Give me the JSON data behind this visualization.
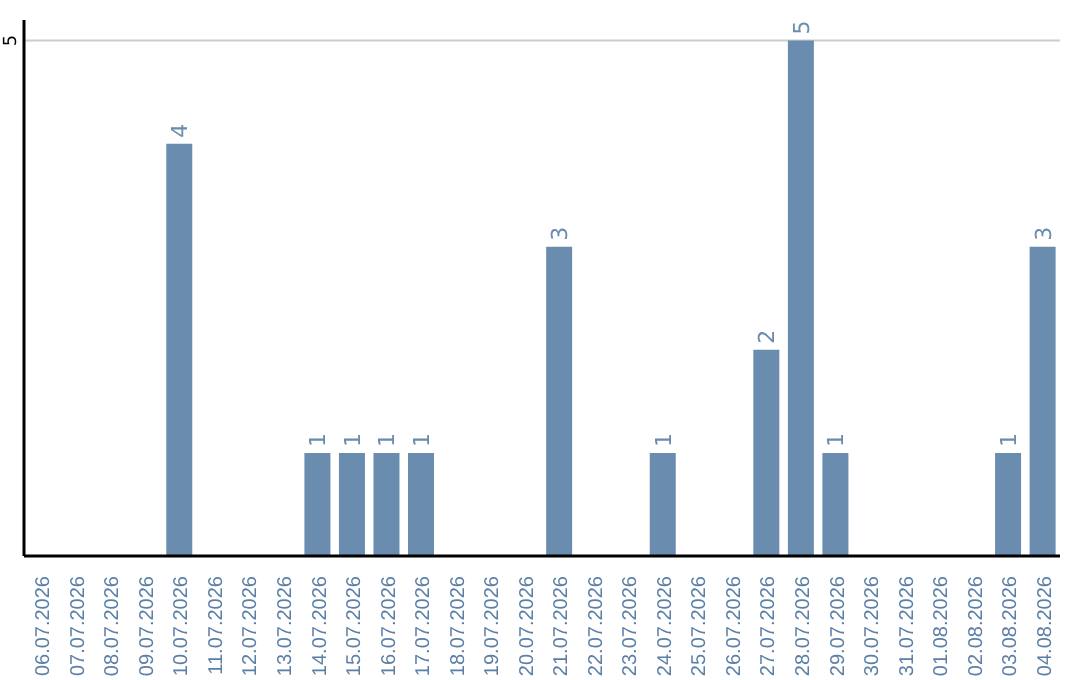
{
  "chart_data": {
    "type": "bar",
    "categories": [
      "06.07.2026",
      "07.07.2026",
      "08.07.2026",
      "09.07.2026",
      "10.07.2026",
      "11.07.2026",
      "12.07.2026",
      "13.07.2026",
      "14.07.2026",
      "15.07.2026",
      "16.07.2026",
      "17.07.2026",
      "18.07.2026",
      "19.07.2026",
      "20.07.2026",
      "21.07.2026",
      "22.07.2026",
      "23.07.2026",
      "24.07.2026",
      "25.07.2026",
      "26.07.2026",
      "27.07.2026",
      "28.07.2026",
      "29.07.2026",
      "30.07.2026",
      "31.07.2026",
      "01.08.2026",
      "02.08.2026",
      "03.08.2026",
      "04.08.2026"
    ],
    "values": [
      null,
      null,
      null,
      null,
      4,
      null,
      null,
      null,
      1,
      1,
      1,
      1,
      null,
      null,
      null,
      3,
      null,
      null,
      1,
      null,
      null,
      2,
      5,
      1,
      null,
      null,
      null,
      null,
      1,
      3
    ],
    "color": "#6a8caf",
    "ylim": [
      0,
      5.2
    ],
    "yticks": [
      5
    ],
    "grid": "y",
    "data_labels": true
  }
}
